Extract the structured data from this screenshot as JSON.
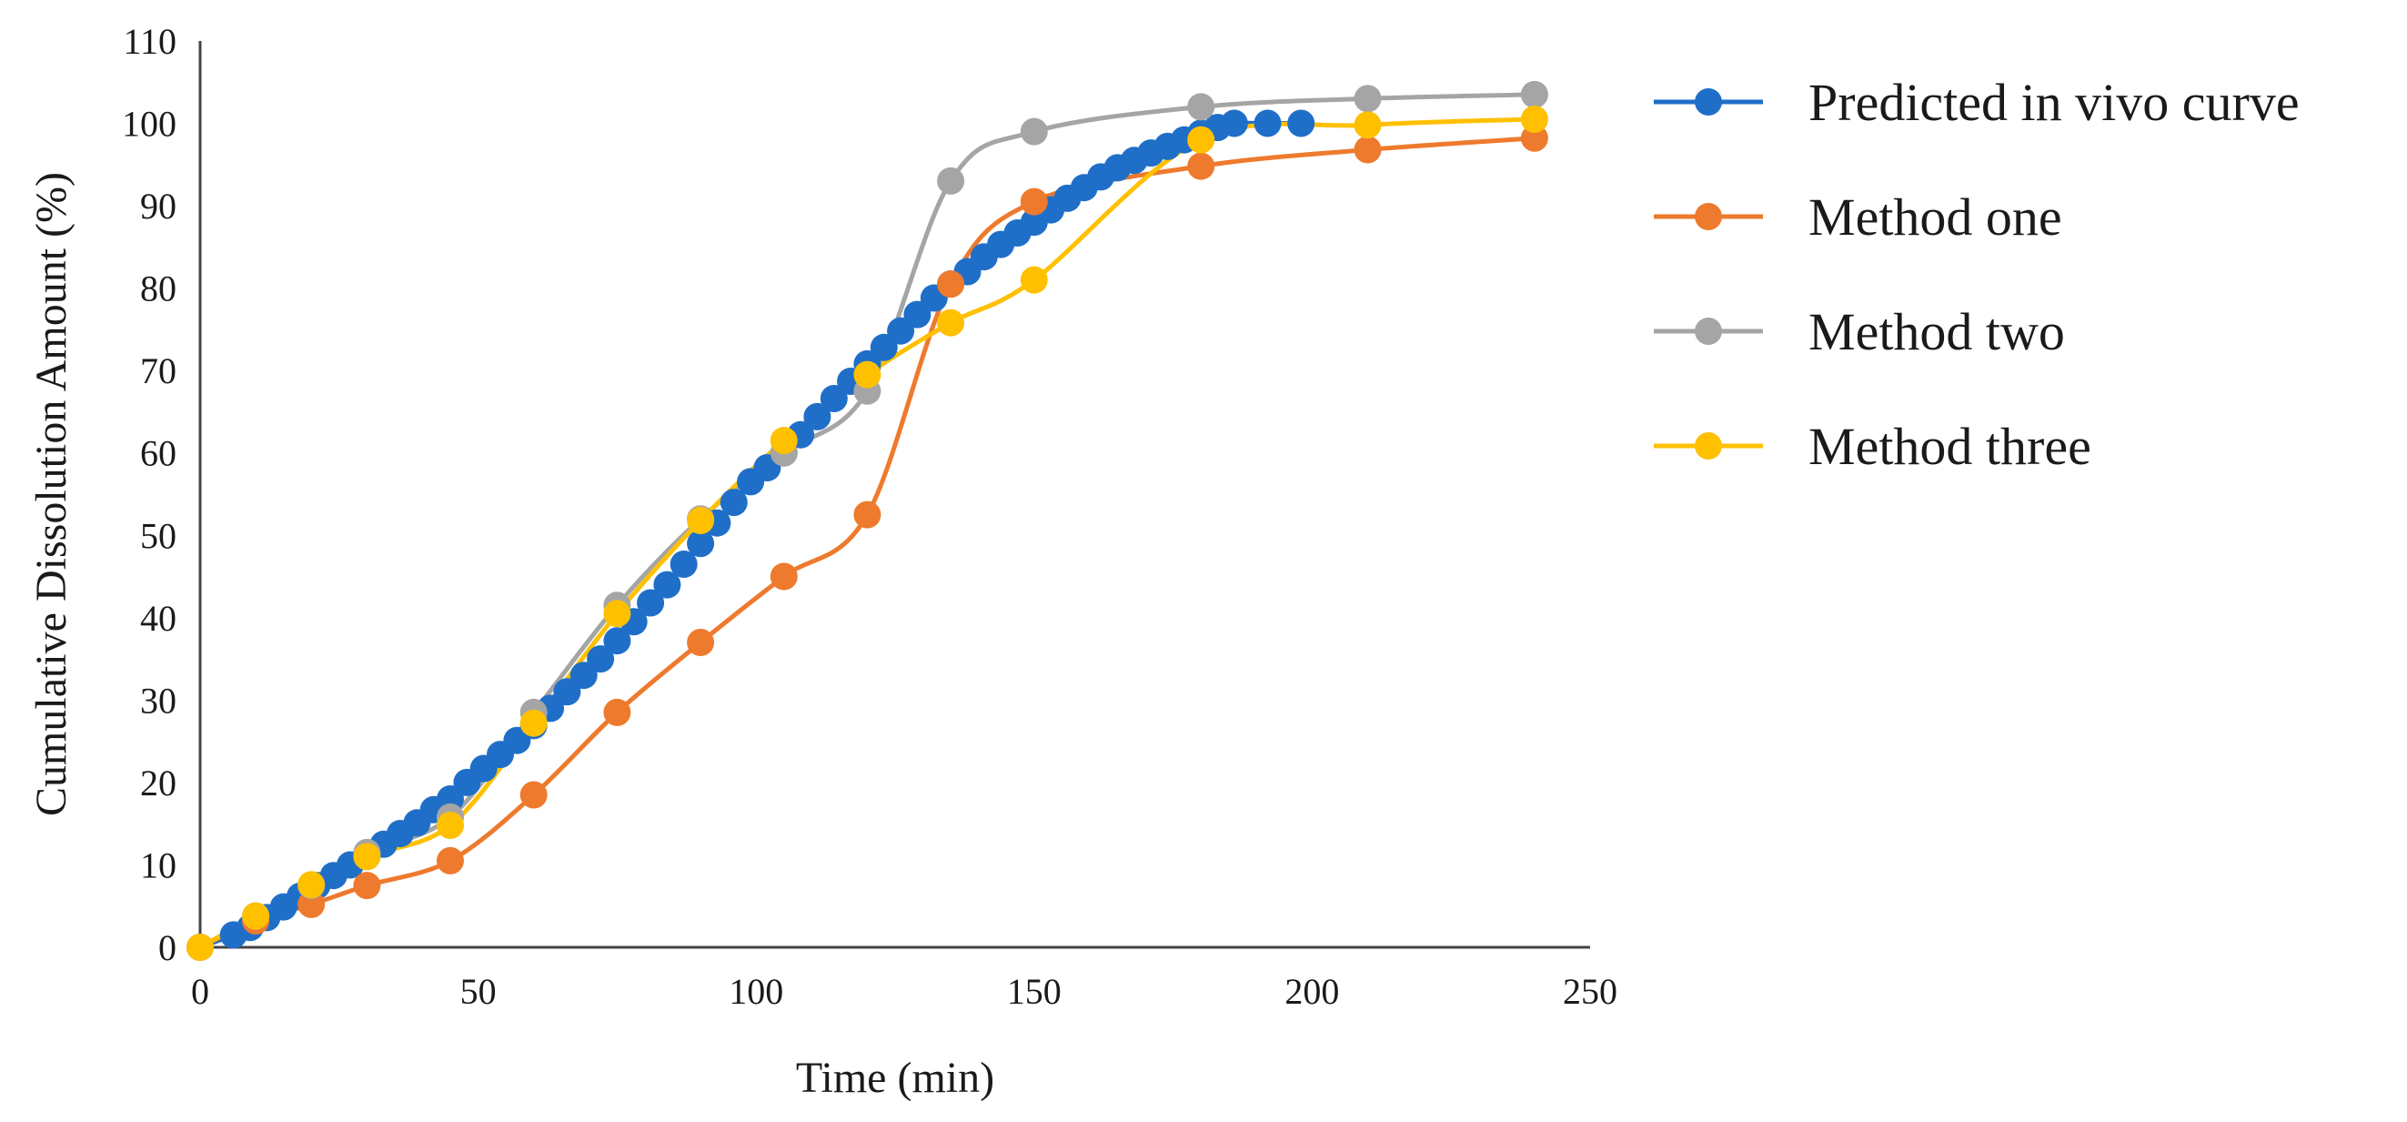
{
  "chart_data": {
    "type": "line",
    "title": "",
    "xlabel": "Time (min)",
    "ylabel": "Cumulative Dissolution Amount (%)",
    "xlim": [
      0,
      250
    ],
    "ylim": [
      0,
      110
    ],
    "xticks": [
      0,
      50,
      100,
      150,
      200,
      250
    ],
    "yticks": [
      0,
      10,
      20,
      30,
      40,
      50,
      60,
      70,
      80,
      90,
      100,
      110
    ],
    "grid": false,
    "legend_position": "right",
    "series": [
      {
        "name": "Predicted in vivo curve",
        "color": "#1f6fc8",
        "smooth": true,
        "x": [
          0,
          6,
          9,
          12,
          15,
          18,
          21,
          24,
          27,
          30,
          33,
          36,
          39,
          42,
          45,
          48,
          51,
          54,
          57,
          60,
          63,
          66,
          69,
          72,
          75,
          78,
          81,
          84,
          87,
          90,
          93,
          96,
          99,
          102,
          105,
          108,
          111,
          114,
          117,
          120,
          123,
          126,
          129,
          132,
          135,
          138,
          141,
          144,
          147,
          150,
          153,
          156,
          159,
          162,
          165,
          168,
          171,
          174,
          177,
          180,
          183,
          186,
          192,
          198
        ],
        "y": [
          0,
          1.5,
          2.4,
          3.6,
          4.9,
          6.2,
          7.5,
          8.7,
          10.0,
          11.2,
          12.5,
          13.8,
          15.1,
          16.7,
          18.0,
          20.0,
          21.7,
          23.4,
          25.1,
          26.9,
          29.0,
          31.0,
          33.0,
          35.0,
          37.2,
          39.5,
          41.8,
          44.0,
          46.5,
          49.0,
          51.5,
          54.0,
          56.5,
          58.2,
          60.0,
          62.2,
          64.4,
          66.6,
          68.7,
          70.8,
          72.8,
          74.8,
          76.8,
          78.8,
          80.5,
          82.0,
          83.8,
          85.3,
          86.7,
          88.0,
          89.5,
          90.9,
          92.2,
          93.5,
          94.6,
          95.5,
          96.4,
          97.2,
          98.0,
          98.8,
          99.5,
          100.0,
          100.0,
          100.0
        ]
      },
      {
        "name": "Method one",
        "color": "#ee7a2d",
        "smooth": true,
        "x": [
          0,
          10,
          20,
          30,
          45,
          60,
          75,
          90,
          105,
          120,
          135,
          150,
          180,
          210,
          240
        ],
        "y": [
          0,
          3.2,
          5.2,
          7.5,
          10.5,
          18.5,
          28.5,
          37.0,
          45.0,
          52.5,
          80.5,
          90.5,
          94.8,
          96.8,
          98.2
        ]
      },
      {
        "name": "Method two",
        "color": "#a5a5a5",
        "smooth": true,
        "x": [
          0,
          10,
          20,
          30,
          45,
          60,
          75,
          90,
          105,
          120,
          135,
          150,
          180,
          210,
          240
        ],
        "y": [
          0,
          3.8,
          7.5,
          11.5,
          15.8,
          28.5,
          41.5,
          52.0,
          60.0,
          67.5,
          93.0,
          99.0,
          102.0,
          103.0,
          103.5
        ]
      },
      {
        "name": "Method three",
        "color": "#ffc000",
        "smooth": true,
        "x": [
          0,
          10,
          20,
          30,
          45,
          60,
          75,
          90,
          105,
          120,
          135,
          150,
          180,
          210,
          240
        ],
        "y": [
          0,
          3.8,
          7.6,
          11.0,
          14.8,
          27.2,
          40.5,
          51.8,
          61.5,
          69.5,
          75.8,
          81.0,
          98.0,
          99.8,
          100.5
        ]
      }
    ]
  }
}
